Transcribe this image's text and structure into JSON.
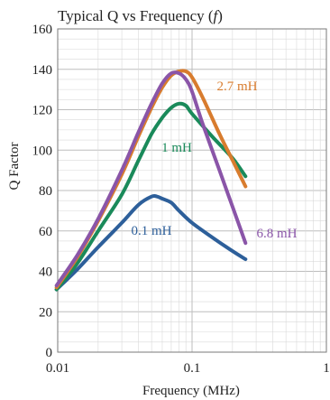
{
  "chart_data": {
    "type": "line",
    "title": "Typical Q vs Frequency (",
    "title_var": "f",
    "title_end": ")",
    "xlabel": "Frequency (MHz)",
    "ylabel": "Q Factor",
    "x_scale": "log",
    "xlim": [
      0.01,
      1
    ],
    "ylim": [
      0,
      160
    ],
    "x_ticks": [
      0.01,
      0.1,
      1
    ],
    "x_tick_labels": [
      "0.01",
      "0.1",
      "1"
    ],
    "y_ticks": [
      0,
      20,
      40,
      60,
      80,
      100,
      120,
      140,
      160
    ],
    "y_tick_labels": [
      "0",
      "20",
      "40",
      "60",
      "80",
      "100",
      "120",
      "140",
      "160"
    ],
    "grid": true,
    "legend": "none",
    "series": [
      {
        "name": "0.1 mH",
        "color": "#2d5f9a",
        "x": [
          0.0098,
          0.014,
          0.02,
          0.03,
          0.04,
          0.05,
          0.055,
          0.06,
          0.07,
          0.08,
          0.1,
          0.14,
          0.2,
          0.25
        ],
        "y": [
          31,
          41,
          52,
          64,
          73,
          77,
          77,
          76,
          74,
          70,
          64,
          57,
          50,
          46
        ]
      },
      {
        "name": "1 mH",
        "color": "#1a8a5a",
        "x": [
          0.0098,
          0.014,
          0.02,
          0.03,
          0.04,
          0.05,
          0.06,
          0.07,
          0.08,
          0.09,
          0.1,
          0.14,
          0.2,
          0.25
        ],
        "y": [
          31,
          44,
          60,
          78,
          95,
          108,
          116,
          121,
          123,
          122,
          118,
          107,
          96,
          87
        ]
      },
      {
        "name": "2.7 mH",
        "color": "#d87c2e",
        "x": [
          0.0098,
          0.014,
          0.02,
          0.03,
          0.04,
          0.05,
          0.06,
          0.07,
          0.08,
          0.09,
          0.1,
          0.12,
          0.16,
          0.2,
          0.25
        ],
        "y": [
          32,
          47,
          65,
          88,
          107,
          121,
          131,
          137,
          139,
          139,
          136,
          126,
          108,
          95,
          82
        ]
      },
      {
        "name": "6.8 mH",
        "color": "#8a55a8",
        "x": [
          0.0098,
          0.014,
          0.02,
          0.03,
          0.04,
          0.05,
          0.06,
          0.07,
          0.08,
          0.09,
          0.1,
          0.12,
          0.16,
          0.2,
          0.25
        ],
        "y": [
          33,
          48,
          66,
          90,
          109,
          123,
          133,
          138,
          138,
          135,
          129,
          113,
          90,
          72,
          54
        ]
      }
    ]
  }
}
